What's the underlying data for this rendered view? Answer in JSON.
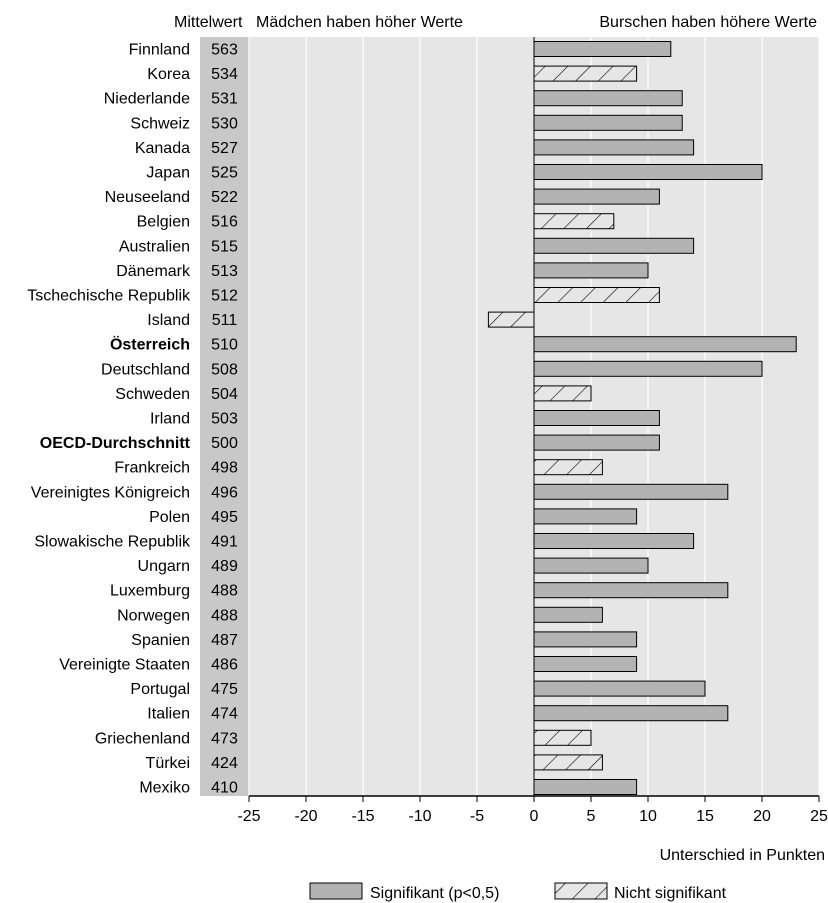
{
  "chart_data": {
    "type": "bar",
    "orientation": "horizontal",
    "header_left": "Mittelwert",
    "header_mid": "Mädchen haben höher Werte",
    "header_right": "Burschen haben höhere Werte",
    "xlabel": "Unterschied in Punkten",
    "xlim": [
      -25,
      25
    ],
    "xticks": [
      "-25",
      "-20",
      "-15",
      "-10",
      "-5",
      "0",
      "5",
      "10",
      "15",
      "20",
      "25"
    ],
    "grid": true,
    "legend_position": "bottom",
    "colors": {
      "significant": "#b3b3b3",
      "plot_bg": "#e6e6e6",
      "mean_column": "#c8c8c8",
      "grid": "#ffffff"
    },
    "legend": {
      "significant": "Signifikant (p<0,5)",
      "not_significant": "Nicht signifikant"
    },
    "categories": [
      "Finnland",
      "Korea",
      "Niederlande",
      "Schweiz",
      "Kanada",
      "Japan",
      "Neuseeland",
      "Belgien",
      "Australien",
      "Dänemark",
      "Tschechische Republik",
      "Island",
      "Österreich",
      "Deutschland",
      "Schweden",
      "Irland",
      "OECD-Durchschnitt",
      "Frankreich",
      "Vereinigtes Königreich",
      "Polen",
      "Slowakische Republik",
      "Ungarn",
      "Luxemburg",
      "Norwegen",
      "Spanien",
      "Vereinigte Staaten",
      "Portugal",
      "Italien",
      "Griechenland",
      "Türkei",
      "Mexiko"
    ],
    "bold_categories": [
      "Österreich",
      "OECD-Durchschnitt"
    ],
    "means": [
      563,
      534,
      531,
      530,
      527,
      525,
      522,
      516,
      515,
      513,
      512,
      511,
      510,
      508,
      504,
      503,
      500,
      498,
      496,
      495,
      491,
      489,
      488,
      488,
      487,
      486,
      475,
      474,
      473,
      424,
      410
    ],
    "values": [
      12,
      9,
      13,
      13,
      14,
      20,
      11,
      7,
      14,
      10,
      11,
      -4,
      23,
      20,
      5,
      11,
      11,
      6,
      17,
      9,
      14,
      10,
      17,
      6,
      9,
      9,
      15,
      17,
      5,
      6,
      9
    ],
    "significant": [
      true,
      false,
      true,
      true,
      true,
      true,
      true,
      false,
      true,
      true,
      false,
      false,
      true,
      true,
      false,
      true,
      true,
      false,
      true,
      true,
      true,
      true,
      true,
      true,
      true,
      true,
      true,
      true,
      false,
      false,
      true
    ]
  }
}
